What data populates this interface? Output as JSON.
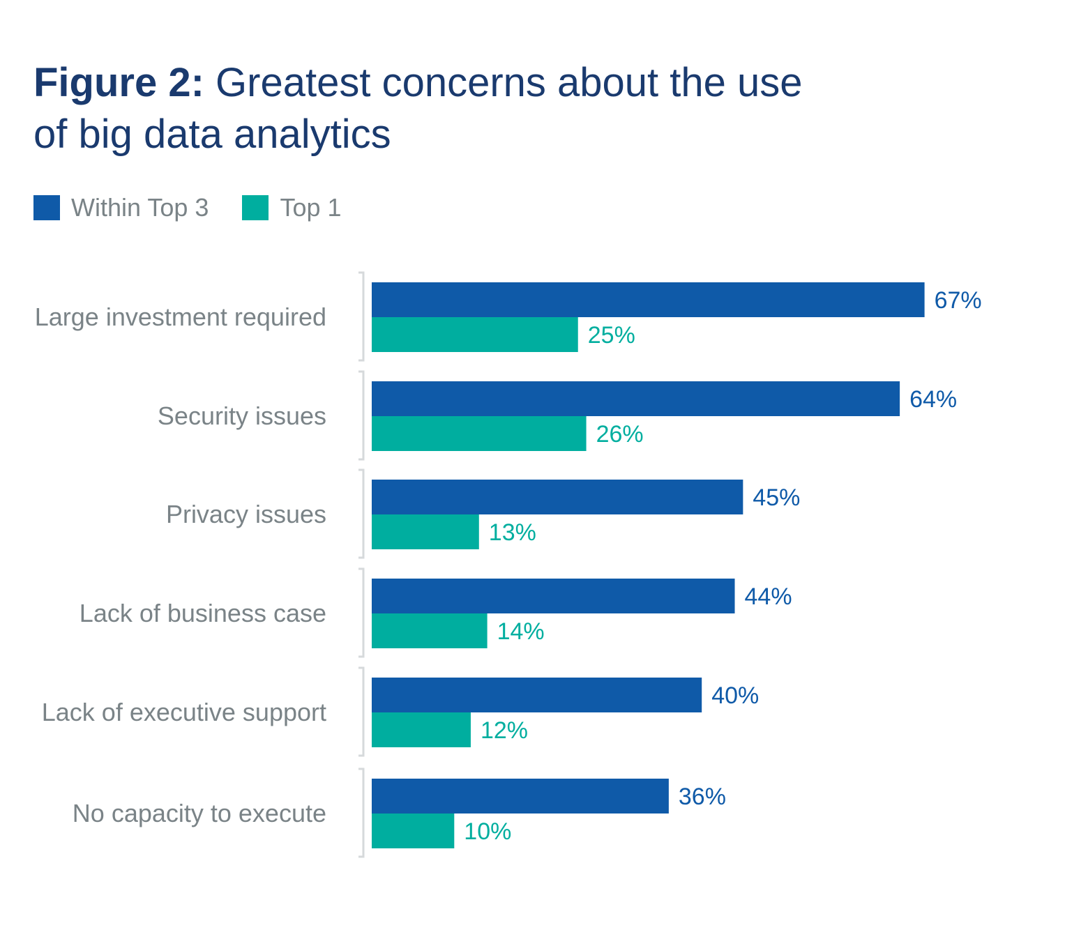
{
  "title": {
    "prefix": "Figure 2:",
    "line1_rest": " Greatest concerns about the use",
    "line2": "of big data analytics"
  },
  "colors": {
    "within_top3": "#0f5aa8",
    "top1": "#00ae9f",
    "category_text": "#7a8387",
    "bracket": "#d6d9db"
  },
  "legend": [
    {
      "label": "Within Top 3",
      "color": "#0f5aa8"
    },
    {
      "label": "Top 1",
      "color": "#00ae9f"
    }
  ],
  "chart_data": {
    "type": "bar",
    "orientation": "horizontal",
    "categories": [
      "Large investment required",
      "Security issues",
      "Privacy issues",
      "Lack of business case",
      "Lack of executive support",
      "No capacity to execute"
    ],
    "series": [
      {
        "name": "Within Top 3",
        "values": [
          67,
          64,
          45,
          44,
          40,
          36
        ],
        "labels": [
          "67%",
          "64%",
          "45%",
          "44%",
          "40%",
          "36%"
        ]
      },
      {
        "name": "Top 1",
        "values": [
          25,
          26,
          13,
          14,
          12,
          10
        ],
        "labels": [
          "25%",
          "26%",
          "13%",
          "14%",
          "12%",
          "10%"
        ]
      }
    ],
    "title": "Figure 2: Greatest concerns about the use of big data analytics",
    "xlabel": "",
    "ylabel": "",
    "grid": false,
    "legend_position": "top-left"
  }
}
